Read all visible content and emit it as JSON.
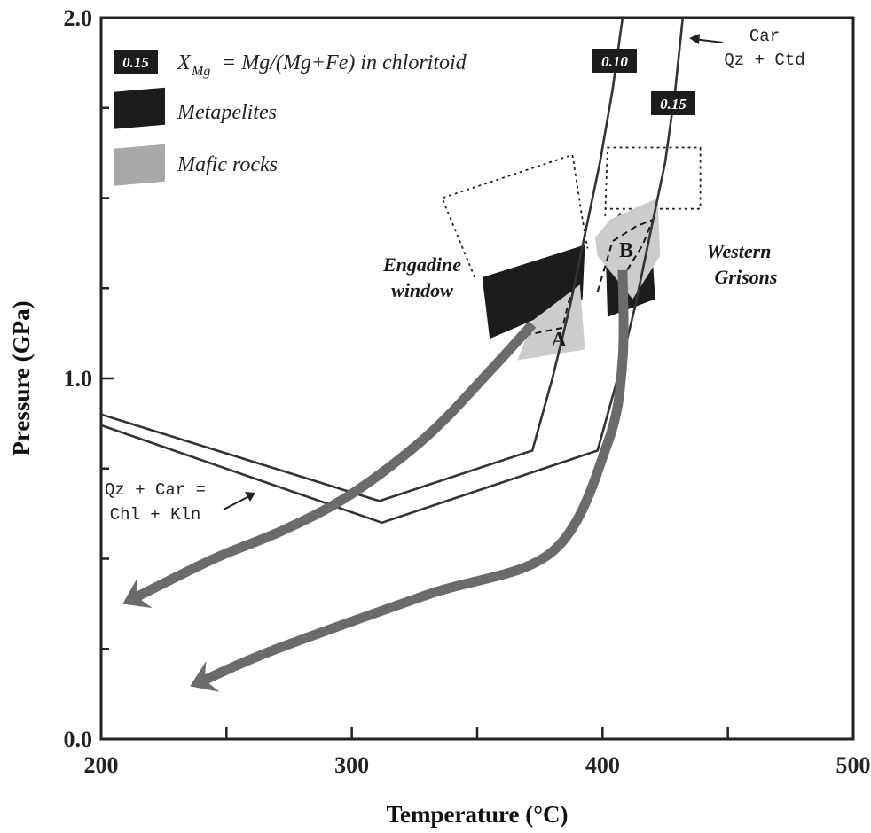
{
  "chart_data": {
    "type": "line",
    "xlabel": "Temperature (°C)",
    "ylabel": "Pressure (GPa)",
    "xlim": [
      200,
      500
    ],
    "ylim": [
      0.0,
      2.0
    ],
    "x_ticks": [
      "200",
      "300",
      "400",
      "500"
    ],
    "y_ticks": [
      "0.0",
      "1.0",
      "2.0"
    ],
    "grid": false,
    "legend": {
      "placement": "top-left",
      "badge": "0.15",
      "xmg_label": "X",
      "xmg_sub": "Mg",
      "xmg_text": "= Mg/(Mg+Fe) in chloritoid",
      "entries": [
        {
          "label": "Metapelites",
          "color": "#1c1c1c"
        },
        {
          "label": "Mafic rocks",
          "color": "#a8a8a8"
        }
      ]
    },
    "isopleths": [
      {
        "name": "0.10",
        "color": "#333333",
        "points": [
          [
            200,
            0.9
          ],
          [
            311,
            0.66
          ],
          [
            372,
            0.8
          ],
          [
            380,
            1.0
          ],
          [
            387,
            1.2
          ],
          [
            393,
            1.4
          ],
          [
            399,
            1.6
          ],
          [
            404,
            1.8
          ],
          [
            408,
            2.0
          ]
        ]
      },
      {
        "name": "0.15",
        "color": "#333333",
        "points": [
          [
            200,
            0.87
          ],
          [
            312,
            0.6
          ],
          [
            398,
            0.8
          ],
          [
            406,
            1.0
          ],
          [
            413,
            1.2
          ],
          [
            419,
            1.4
          ],
          [
            425,
            1.6
          ],
          [
            429,
            1.8
          ],
          [
            432,
            2.0
          ]
        ]
      }
    ],
    "annotations": {
      "car_arrow": {
        "line1": "Car",
        "line2": "Qz + Ctd"
      },
      "chl_arrow": {
        "line1": "Qz + Car =",
        "line2": "Chl + Kln"
      },
      "engadine": {
        "line1": "Engadine",
        "line2": "window"
      },
      "western": {
        "line1": "Western",
        "line2": "Grisons"
      },
      "point_a": "A",
      "point_b": "B"
    },
    "regions": {
      "engadine_metapelites": {
        "color": "#1c1c1c",
        "points": [
          [
            352,
            1.28
          ],
          [
            393,
            1.37
          ],
          [
            392,
            1.22
          ],
          [
            355,
            1.11
          ]
        ]
      },
      "engadine_mafic": {
        "color": "#cccccc",
        "points": [
          [
            366,
            1.05
          ],
          [
            393,
            1.08
          ],
          [
            391,
            1.26
          ],
          [
            372,
            1.16
          ]
        ]
      },
      "western_metapelites": {
        "color": "#1c1c1c",
        "points": [
          [
            402,
            1.17
          ],
          [
            421,
            1.22
          ],
          [
            420,
            1.33
          ],
          [
            407,
            1.46
          ],
          [
            401,
            1.4
          ]
        ]
      },
      "western_mafic": {
        "color": "#cccccc",
        "points": [
          [
            412,
            1.22
          ],
          [
            423,
            1.34
          ],
          [
            422,
            1.5
          ],
          [
            403,
            1.44
          ],
          [
            397,
            1.39
          ],
          [
            398,
            1.34
          ]
        ]
      },
      "engadine_dashed": {
        "points": [
          [
            369,
            1.12
          ],
          [
            384,
            1.14
          ],
          [
            392,
            1.37
          ]
        ]
      },
      "western_dashed": {
        "points": [
          [
            398,
            1.24
          ],
          [
            404,
            1.38
          ],
          [
            413,
            1.42
          ],
          [
            420,
            1.44
          ],
          [
            416,
            1.37
          ],
          [
            408,
            1.28
          ]
        ]
      },
      "engadine_dotted": {
        "points": [
          [
            349,
            1.28
          ],
          [
            336,
            1.5
          ],
          [
            388,
            1.62
          ],
          [
            392,
            1.44
          ],
          [
            394,
            1.36
          ]
        ]
      },
      "western_dotted": {
        "points": [
          [
            401,
            1.45
          ],
          [
            402,
            1.64
          ],
          [
            439,
            1.64
          ],
          [
            439,
            1.47
          ],
          [
            401,
            1.47
          ]
        ]
      }
    },
    "pt_paths": [
      {
        "name": "A",
        "color": "#6b6b6b",
        "points": [
          [
            372,
            1.15
          ],
          [
            355,
            1.02
          ],
          [
            330,
            0.84
          ],
          [
            300,
            0.68
          ],
          [
            273,
            0.58
          ],
          [
            245,
            0.5
          ],
          [
            213,
            0.39
          ]
        ]
      },
      {
        "name": "B",
        "color": "#6b6b6b",
        "points": [
          [
            408,
            1.3
          ],
          [
            408,
            1.05
          ],
          [
            402,
            0.82
          ],
          [
            380,
            0.52
          ],
          [
            330,
            0.4
          ],
          [
            270,
            0.25
          ],
          [
            240,
            0.16
          ]
        ]
      }
    ]
  }
}
